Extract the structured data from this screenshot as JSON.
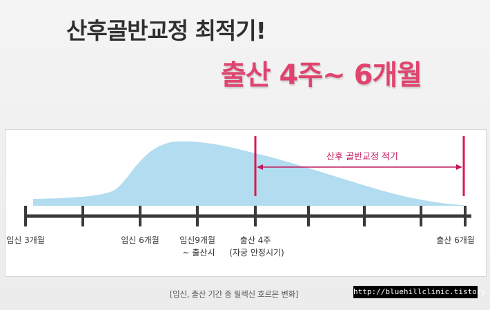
{
  "title": "산후골반교정 최적기!",
  "subtitle": "출산 4주~ 6개월",
  "diagram": {
    "range_label": "산후 골반교정 적기",
    "timeline": [
      {
        "lines": [
          "임신 3개월"
        ]
      },
      {
        "lines": [
          "임신 6개월"
        ]
      },
      {
        "lines": [
          "임신9개월",
          "~ 출산시"
        ]
      },
      {
        "lines": [
          "출산 4주",
          "(자궁 안정시기)"
        ]
      },
      {
        "lines": [
          "출산 6개월"
        ]
      }
    ],
    "colors": {
      "curve_fill": "#b2dcef",
      "marker": "#d81b4e",
      "axis": "#3a3a3a",
      "title_accent": "#e0446e"
    }
  },
  "caption": "[임신, 출산 기간 중 릴렉신 호르몬 변화]",
  "watermark": "http://bluehillclinic.tistory.com"
}
